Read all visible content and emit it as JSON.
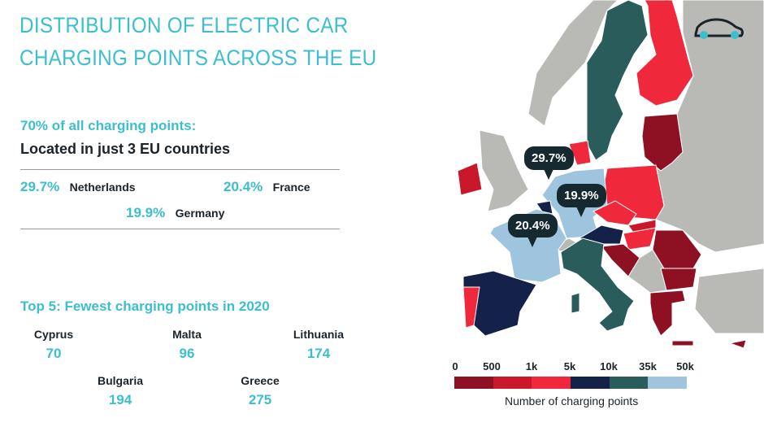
{
  "title": {
    "line1": "DISTRIBUTION OF ELECTRIC CAR",
    "line2": "CHARGING POINTS ACROSS THE EU"
  },
  "highlight": {
    "heading": "70% of all charging points:",
    "subheading": "Located in just 3 EU countries",
    "countries": [
      {
        "pct": "29.7%",
        "name": "Netherlands"
      },
      {
        "pct": "20.4%",
        "name": "France"
      },
      {
        "pct": "19.9%",
        "name": "Germany"
      }
    ]
  },
  "fewest": {
    "heading": "Top 5: Fewest charging points in 2020",
    "items": [
      {
        "name": "Cyprus",
        "value": "70"
      },
      {
        "name": "Malta",
        "value": "96"
      },
      {
        "name": "Lithuania",
        "value": "174"
      },
      {
        "name": "Bulgaria",
        "value": "194"
      },
      {
        "name": "Greece",
        "value": "275"
      }
    ]
  },
  "map": {
    "callouts": {
      "netherlands": "29.7%",
      "germany": "19.9%",
      "france": "20.4%"
    },
    "icon": "car-icon",
    "legend": {
      "ticks": [
        "0",
        "500",
        "1k",
        "5k",
        "10k",
        "35k",
        "50k"
      ],
      "colors": [
        "#8e1023",
        "#c8182a",
        "#f0283c",
        "#14224a",
        "#2a5c5c",
        "#9ec4de"
      ],
      "caption": "Number of charging points"
    },
    "colors": {
      "non_eu": "#b9b9b6",
      "accent": "#3bbfcf"
    }
  }
}
